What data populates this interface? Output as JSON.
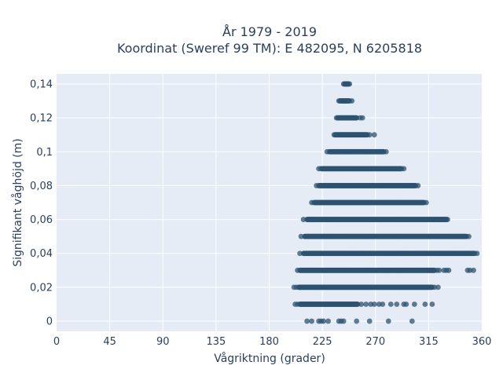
{
  "chart_data": {
    "type": "scatter",
    "title_line1": "År 1979 - 2019",
    "title_line2": "Koordinat (Sweref 99 TM): E 482095, N 6205818",
    "xlabel": "Vågriktning (grader)",
    "ylabel": "Signifikant våghöjd (m)",
    "xlim": [
      0,
      360
    ],
    "ylim": [
      -0.006,
      0.146
    ],
    "xticks": [
      0,
      45,
      90,
      135,
      180,
      225,
      270,
      315,
      360
    ],
    "xtick_labels": [
      "0",
      "45",
      "90",
      "135",
      "180",
      "225",
      "270",
      "315",
      "360"
    ],
    "yticks": [
      0,
      0.02,
      0.04,
      0.06,
      0.08,
      0.1,
      0.12,
      0.14
    ],
    "ytick_labels": [
      "0",
      "0,02",
      "0,04",
      "0,06",
      "0,08",
      "0,1",
      "0,12",
      "0,14"
    ],
    "grid": true,
    "marker_color": "#2e5370",
    "plot_background": "#e5ecf6",
    "series": [
      {
        "bands": [
          {
            "y": 0.0,
            "dense_range": null,
            "scatter_x": [
              212,
              216,
              222,
              224,
              226,
              230,
              239,
              241,
              243,
              254,
              265,
              281,
              301
            ]
          },
          {
            "y": 0.01,
            "dense_range": [
              206,
              255
            ],
            "scatter_x": [
              202,
              204,
              258,
              262,
              266,
              269,
              273,
              276,
              283,
              288,
              294,
              296,
              303,
              312,
              318
            ]
          },
          {
            "y": 0.02,
            "dense_range": [
              205,
              318
            ],
            "scatter_x": [
              201,
              203,
              320,
              323
            ]
          },
          {
            "y": 0.03,
            "dense_range": [
              206,
              320
            ],
            "scatter_x": [
              204,
              322,
              324,
              328,
              330,
              332,
              348,
              350,
              353
            ]
          },
          {
            "y": 0.04,
            "dense_range": [
              209,
              354
            ],
            "scatter_x": [
              206,
              356
            ]
          },
          {
            "y": 0.05,
            "dense_range": [
              210,
              347
            ],
            "scatter_x": [
              207,
              349
            ]
          },
          {
            "y": 0.06,
            "dense_range": [
              212,
              330
            ],
            "scatter_x": [
              209,
              331
            ]
          },
          {
            "y": 0.07,
            "dense_range": [
              218,
              311
            ],
            "scatter_x": [
              216,
              313
            ]
          },
          {
            "y": 0.08,
            "dense_range": [
              222,
              304
            ],
            "scatter_x": [
              220,
              306
            ]
          },
          {
            "y": 0.09,
            "dense_range": [
              224,
              292
            ],
            "scatter_x": [
              222,
              294
            ]
          },
          {
            "y": 0.1,
            "dense_range": [
              231,
              277
            ],
            "scatter_x": [
              229,
              279
            ]
          },
          {
            "y": 0.11,
            "dense_range": [
              236,
              263
            ],
            "scatter_x": [
              235,
              265,
              269
            ]
          },
          {
            "y": 0.12,
            "dense_range": [
              238,
              254
            ],
            "scatter_x": [
              237,
              257,
              259
            ]
          },
          {
            "y": 0.13,
            "dense_range": [
              240,
              248
            ],
            "scatter_x": [
              239,
              250
            ]
          },
          {
            "y": 0.14,
            "dense_range": [
              244,
              247
            ],
            "scatter_x": [
              243,
              248
            ]
          }
        ]
      }
    ]
  }
}
